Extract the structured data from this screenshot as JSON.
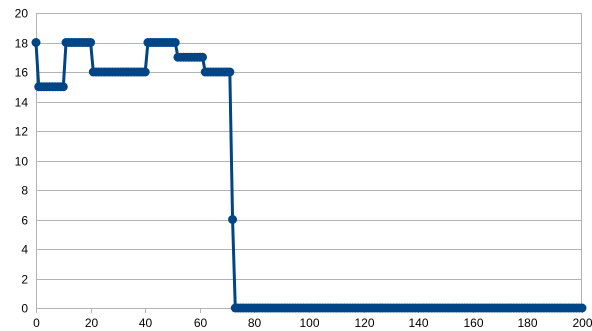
{
  "chart_data": {
    "type": "line",
    "title": "",
    "xlabel": "",
    "ylabel": "",
    "xlim": [
      0,
      200
    ],
    "ylim": [
      0,
      20
    ],
    "x_ticks": [
      0,
      20,
      40,
      60,
      80,
      100,
      120,
      140,
      160,
      180,
      200
    ],
    "y_ticks": [
      0,
      2,
      4,
      6,
      8,
      10,
      12,
      14,
      16,
      18,
      20
    ],
    "grid": true,
    "legend": "none",
    "markers": true,
    "series": [
      {
        "color": "#004586",
        "segments": [
          {
            "x_start": 0,
            "x_end": 0,
            "y": 18
          },
          {
            "x_start": 1,
            "x_end": 11,
            "y": 15
          },
          {
            "x_start": 11,
            "x_end": 21,
            "y": 18
          },
          {
            "x_start": 21,
            "x_end": 41,
            "y": 16
          },
          {
            "x_start": 41,
            "x_end": 51,
            "y": 18
          },
          {
            "x_start": 52,
            "x_end": 61,
            "y": 17
          },
          {
            "x_start": 62,
            "x_end": 71,
            "y": 16
          },
          {
            "x_start": 72,
            "x_end": 72,
            "y": 6
          },
          {
            "x_start": 73,
            "x_end": 200,
            "y": 0
          }
        ]
      }
    ]
  }
}
